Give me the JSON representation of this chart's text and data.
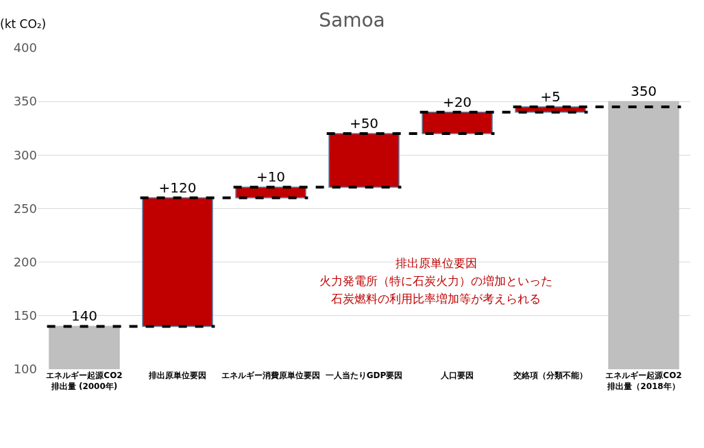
{
  "chart_data": {
    "type": "bar",
    "title": "Samoa",
    "ylabel": "(kt CO₂)",
    "categories": [
      "エネルギー起源CO2\n排出量 (2000年)",
      "排出原単位要因",
      "エネルギー消費原単位要因",
      "一人当たりGDP要因",
      "人口要因",
      "交絡項（分類不能）",
      "エネルギー起源CO2\n排出量（2018年）"
    ],
    "values": [
      140,
      120,
      10,
      50,
      20,
      5,
      350
    ],
    "base": [
      null,
      140,
      260,
      270,
      320,
      340,
      null
    ],
    "colors": [
      "#bfbfbf",
      "#c00000",
      "#c00000",
      "#c00000",
      "#c00000",
      "#c00000",
      "#bfbfbf"
    ],
    "value_labels": [
      "140",
      "+120",
      "+10",
      "+50",
      "+20",
      "+5",
      "350"
    ],
    "ylim": [
      100,
      400
    ],
    "yticks": [
      100,
      150,
      200,
      250,
      300,
      350,
      400
    ],
    "grid": "y",
    "ref_lines": [
      {
        "axis": "y",
        "value": 140,
        "color": "#000000",
        "line_style": "dashed"
      },
      {
        "axis": "y",
        "value": 260,
        "color": "#000000",
        "line_style": "dashed"
      },
      {
        "axis": "y",
        "value": 270,
        "color": "#000000",
        "line_style": "dashed"
      },
      {
        "axis": "y",
        "value": 320,
        "color": "#000000",
        "line_style": "dashed"
      },
      {
        "axis": "y",
        "value": 340,
        "color": "#000000",
        "line_style": "dashed"
      },
      {
        "axis": "y",
        "value": 345,
        "color": "#000000",
        "line_style": "dashed"
      }
    ],
    "annotations": [
      "排出原単位要因",
      "火力発電所（特に石炭火力）の増加といった",
      "石炭燃料の利用比率増加等が考えられる"
    ]
  }
}
